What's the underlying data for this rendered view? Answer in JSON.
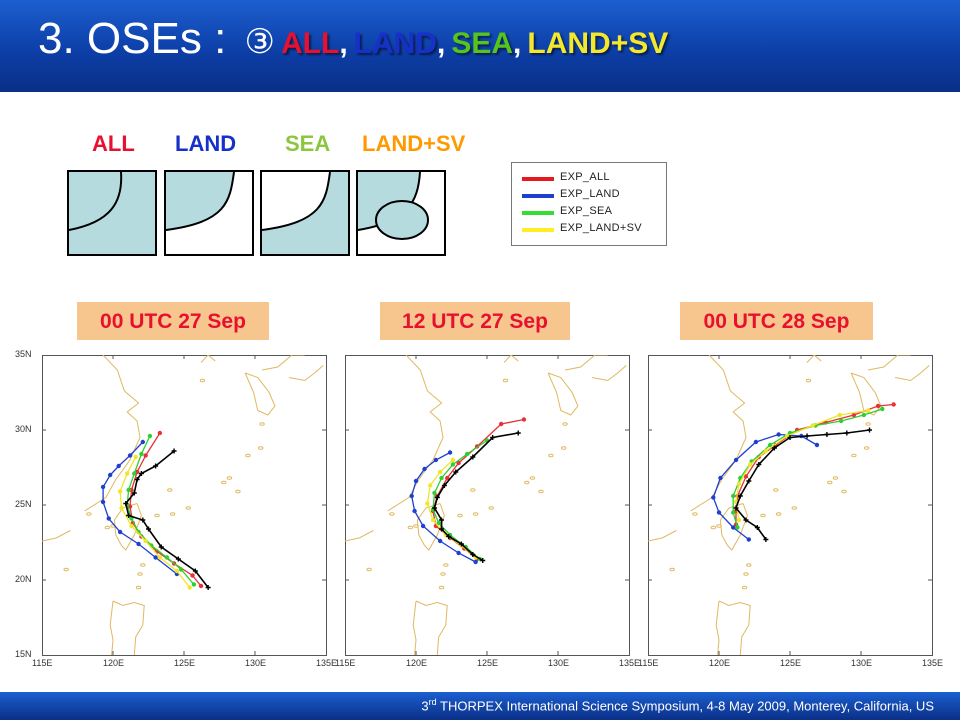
{
  "header": {
    "prefix": "3. OSEs : ",
    "circled": "③",
    "keywords": [
      {
        "text": "ALL",
        "color": "#e8102f"
      },
      {
        "text": "LAND",
        "color": "#1630c8"
      },
      {
        "text": "SEA",
        "color": "#55c51c"
      },
      {
        "text": "LAND+SV",
        "color": "#f4e82c"
      }
    ],
    "separator": ","
  },
  "experiments": [
    {
      "label": "ALL",
      "color": "#e8102f"
    },
    {
      "label": "LAND",
      "color": "#1630c8"
    },
    {
      "label": "SEA",
      "color": "#8cc63f"
    },
    {
      "label": "LAND+SV",
      "color": "#ff9900"
    }
  ],
  "legend": {
    "entries": [
      {
        "label": "EXP_ALL",
        "color": "#e41a1c"
      },
      {
        "label": "EXP_LAND",
        "color": "#1f3fd0"
      },
      {
        "label": "EXP_SEA",
        "color": "#33dd33"
      },
      {
        "label": "EXP_LAND+SV",
        "color": "#ffee22"
      }
    ]
  },
  "panels": [
    {
      "time": "00 UTC 27 Sep"
    },
    {
      "time": "12 UTC 27 Sep"
    },
    {
      "time": "00 UTC 28 Sep"
    }
  ],
  "axes": {
    "lat_ticks": [
      "35N",
      "30N",
      "25N",
      "20N",
      "15N"
    ],
    "lon_ticks": [
      "115E",
      "120E",
      "125E",
      "130E",
      "135E"
    ]
  },
  "footer": {
    "ordinal": "3",
    "sup": "rd",
    "text": " THORPEX International Science Symposium, 4-8 May 2009, Monterey, California, US"
  }
}
